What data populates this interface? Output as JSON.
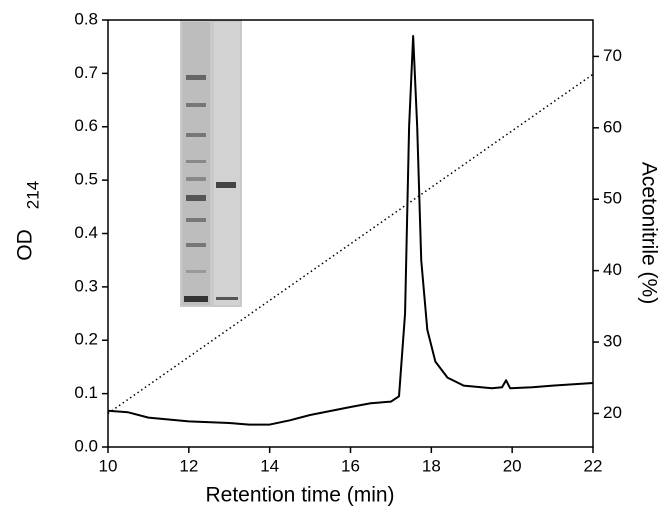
{
  "chart_data": {
    "type": "line",
    "x_label": "Retention time (min)",
    "y_label": "OD",
    "y_label_subscript": "214",
    "y2_label": "Acetonitrile (%)",
    "xlim": [
      10,
      22
    ],
    "xticks": [
      10,
      12,
      14,
      16,
      18,
      20,
      22
    ],
    "ylim": [
      0,
      0.8
    ],
    "yticks": [
      {
        "value": 0,
        "label": "0.0"
      },
      0.1,
      0.2,
      0.3,
      0.4,
      0.5,
      0.6,
      0.7,
      0.8
    ],
    "y2lim": [
      15.3,
      75.1
    ],
    "y2ticks": [
      20,
      30,
      40,
      50,
      60,
      70
    ],
    "series": [
      {
        "name": "OD214",
        "color": "#000000",
        "style": "solid",
        "x": [
          10,
          10.5,
          11,
          12,
          13,
          13.5,
          14,
          14.5,
          15,
          16,
          16.5,
          17,
          17.2,
          17.35,
          17.45,
          17.55,
          17.65,
          17.75,
          17.9,
          18.1,
          18.4,
          18.8,
          19.5,
          19.75,
          19.85,
          19.95,
          20.5,
          21,
          22
        ],
        "values": [
          0.068,
          0.065,
          0.055,
          0.048,
          0.045,
          0.042,
          0.042,
          0.05,
          0.06,
          0.075,
          0.082,
          0.085,
          0.095,
          0.25,
          0.6,
          0.77,
          0.6,
          0.35,
          0.22,
          0.16,
          0.13,
          0.115,
          0.11,
          0.112,
          0.125,
          0.11,
          0.112,
          0.115,
          0.12
        ]
      },
      {
        "name": "Acetonitrile",
        "color": "#000000",
        "style": "dotted",
        "axis": "y2",
        "x": [
          10,
          22
        ],
        "values": [
          20,
          67.5
        ]
      }
    ]
  }
}
